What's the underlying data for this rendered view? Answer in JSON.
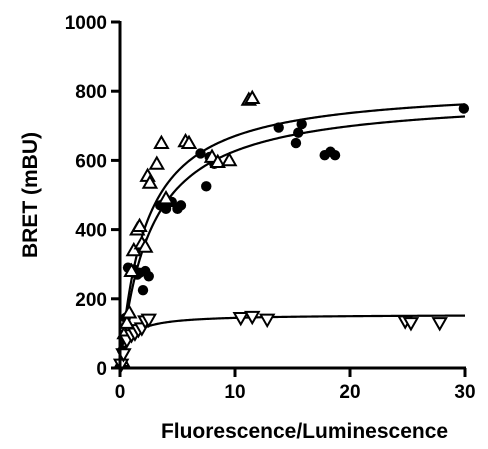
{
  "chart_data": {
    "type": "scatter",
    "title": "",
    "xlabel": "Fluorescence/Luminescence",
    "ylabel": "BRET (mBU)",
    "xlim": [
      0,
      30
    ],
    "ylim": [
      0,
      1000
    ],
    "x_ticks": [
      0,
      10,
      20,
      30
    ],
    "y_ticks": [
      0,
      200,
      400,
      600,
      800,
      1000
    ],
    "x_tick_labels": [
      "0",
      "10",
      "20",
      "30"
    ],
    "y_tick_labels": [
      "0",
      "200",
      "400",
      "600",
      "800",
      "1000"
    ],
    "grid": false,
    "legend": "none",
    "series": [
      {
        "marker": "circle-filled",
        "points": [
          [
            0.1,
            15
          ],
          [
            0.2,
            50
          ],
          [
            0.4,
            90
          ],
          [
            0.5,
            145
          ],
          [
            0.7,
            290
          ],
          [
            1.0,
            280
          ],
          [
            1.2,
            285
          ],
          [
            1.5,
            270
          ],
          [
            1.7,
            275
          ],
          [
            2.0,
            225
          ],
          [
            2.2,
            280
          ],
          [
            2.5,
            265
          ],
          [
            3.5,
            470
          ],
          [
            3.8,
            475
          ],
          [
            4.0,
            460
          ],
          [
            4.5,
            480
          ],
          [
            5.0,
            460
          ],
          [
            5.3,
            470
          ],
          [
            7.0,
            620
          ],
          [
            7.5,
            525
          ],
          [
            7.8,
            610
          ],
          [
            8.2,
            590
          ],
          [
            13.8,
            695
          ],
          [
            15.3,
            650
          ],
          [
            15.5,
            680
          ],
          [
            15.8,
            705
          ],
          [
            17.8,
            615
          ],
          [
            18.3,
            625
          ],
          [
            18.7,
            615
          ],
          [
            29.9,
            750
          ]
        ],
        "fit": {
          "model": "one-site-saturation",
          "bmax": 790,
          "kd": 2.6
        }
      },
      {
        "marker": "triangle-up-open",
        "points": [
          [
            0.2,
            20
          ],
          [
            0.4,
            100
          ],
          [
            0.6,
            130
          ],
          [
            0.8,
            160
          ],
          [
            1.0,
            280
          ],
          [
            1.2,
            340
          ],
          [
            1.5,
            400
          ],
          [
            1.7,
            410
          ],
          [
            1.9,
            360
          ],
          [
            2.2,
            350
          ],
          [
            2.4,
            555
          ],
          [
            2.6,
            535
          ],
          [
            3.2,
            590
          ],
          [
            3.6,
            650
          ],
          [
            4.0,
            490
          ],
          [
            5.7,
            655
          ],
          [
            6.0,
            650
          ],
          [
            8.0,
            610
          ],
          [
            8.5,
            595
          ],
          [
            9.5,
            600
          ],
          [
            11.2,
            775
          ],
          [
            11.5,
            780
          ]
        ],
        "fit": {
          "model": "one-site-saturation",
          "bmax": 818,
          "kd": 2.2
        }
      },
      {
        "marker": "triangle-down-open",
        "points": [
          [
            0.1,
            10
          ],
          [
            0.3,
            40
          ],
          [
            0.6,
            80
          ],
          [
            1.0,
            95
          ],
          [
            1.3,
            100
          ],
          [
            1.6,
            110
          ],
          [
            1.9,
            115
          ],
          [
            2.2,
            135
          ],
          [
            2.5,
            140
          ],
          [
            10.5,
            145
          ],
          [
            11.5,
            148
          ],
          [
            12.8,
            140
          ],
          [
            24.8,
            135
          ],
          [
            25.3,
            130
          ],
          [
            27.8,
            130
          ]
        ],
        "fit": {
          "model": "one-site-saturation",
          "bmax": 155,
          "kd": 0.7
        }
      }
    ]
  }
}
